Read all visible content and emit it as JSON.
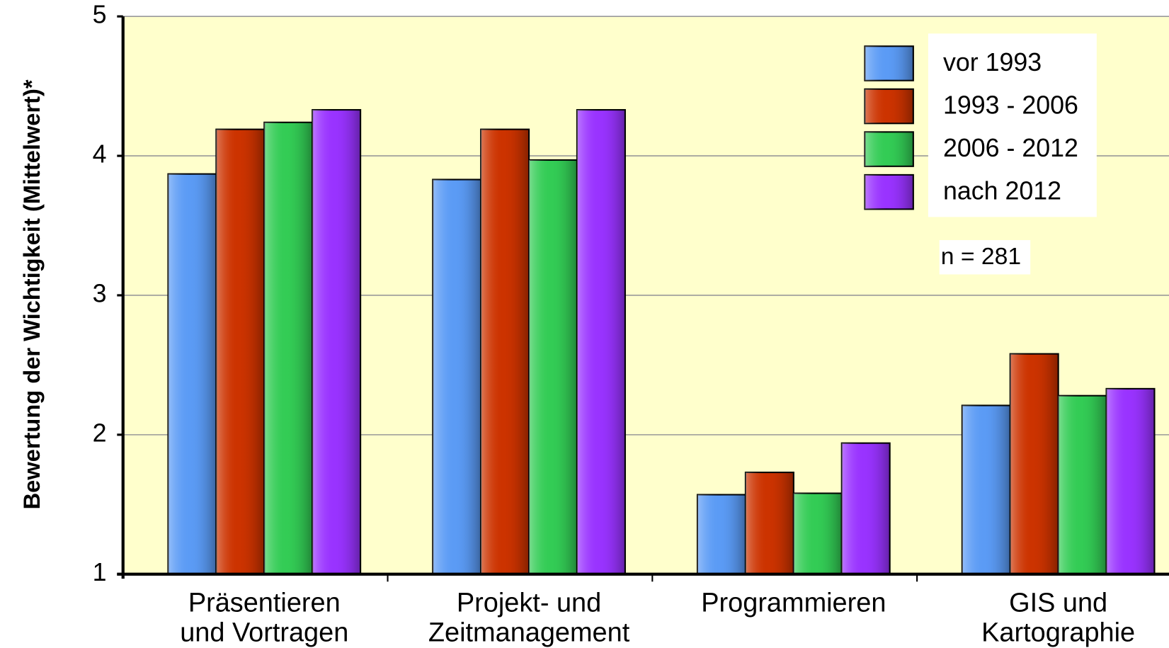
{
  "chart_data": {
    "type": "bar",
    "y_label": "Bewertung der Wichtigkeit (Mittelwert)*",
    "annotation": "n = 281",
    "categories": [
      "Präsentieren\nund Vortragen",
      "Projekt- und\nZeitmanagement",
      "Programmieren",
      "GIS und\nKartographie"
    ],
    "series": [
      {
        "name": "vor 1993",
        "color": "#5b9bf5",
        "values": [
          3.87,
          3.83,
          1.57,
          2.21
        ]
      },
      {
        "name": "1993 - 2006",
        "color": "#cc3300",
        "values": [
          4.19,
          4.19,
          1.73,
          2.58
        ]
      },
      {
        "name": "2006 - 2012",
        "color": "#33cc55",
        "values": [
          4.24,
          3.97,
          1.58,
          2.28
        ]
      },
      {
        "name": "nach 2012",
        "color": "#9933ff",
        "values": [
          4.33,
          4.33,
          1.94,
          2.33
        ]
      }
    ],
    "ylim": [
      1,
      5
    ],
    "yticks": [
      1,
      2,
      3,
      4,
      5
    ],
    "grid": true,
    "legend": "top-right"
  }
}
